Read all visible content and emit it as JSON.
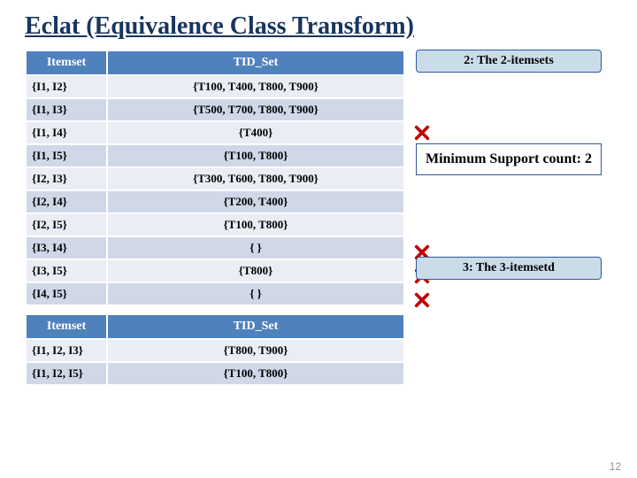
{
  "title": "Eclat (Equivalence Class Transform)",
  "table1": {
    "headers": {
      "itemset": "Itemset",
      "tidset": "TID_Set"
    },
    "rows": [
      {
        "itemset": "{I1, I2}",
        "tidset": "{T100, T400, T800, T900}",
        "cross": false
      },
      {
        "itemset": "{I1, I3}",
        "tidset": "{T500, T700, T800, T900}",
        "cross": false
      },
      {
        "itemset": "{I1, I4}",
        "tidset": "{T400}",
        "cross": true
      },
      {
        "itemset": "{I1, I5}",
        "tidset": "{T100, T800}",
        "cross": false
      },
      {
        "itemset": "{I2, I3}",
        "tidset": "{T300, T600, T800, T900}",
        "cross": false
      },
      {
        "itemset": "{I2, I4}",
        "tidset": "{T200, T400}",
        "cross": false
      },
      {
        "itemset": "{I2, I5}",
        "tidset": "{T100, T800}",
        "cross": false
      },
      {
        "itemset": "{I3, I4}",
        "tidset": "{ }",
        "cross": true
      },
      {
        "itemset": "{I3, I5}",
        "tidset": "{T800}",
        "cross": true
      },
      {
        "itemset": "{I4, I5}",
        "tidset": "{ }",
        "cross": true
      }
    ]
  },
  "table2": {
    "headers": {
      "itemset": "Itemset",
      "tidset": "TID_Set"
    },
    "rows": [
      {
        "itemset": "{I1, I2, I3}",
        "tidset": "{T800, T900}"
      },
      {
        "itemset": "{I1, I2, I5}",
        "tidset": "{T100, T800}"
      }
    ]
  },
  "step2_label": "2: The 2-itemsets",
  "support_label": "Minimum Support count: 2",
  "step3_label": "3: The 3-itemsetd",
  "page_number": "12",
  "colors": {
    "header_bg": "#4f81bd",
    "row_odd": "#e9edf4",
    "row_even": "#d0d8e8",
    "badge_bg": "#cbdce9",
    "border": "#2f5897",
    "title": "#17365d",
    "cross": "#c00000"
  }
}
